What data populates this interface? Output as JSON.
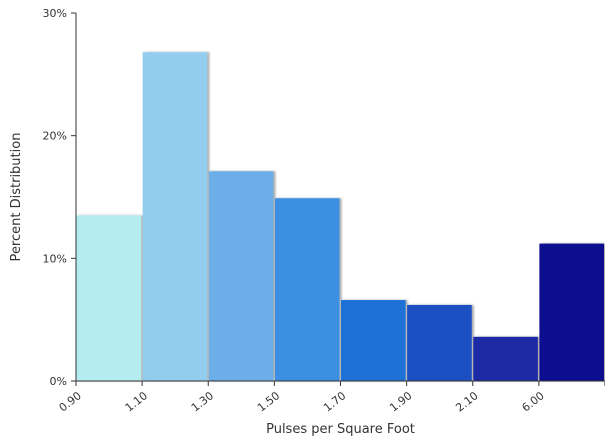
{
  "chart_data": {
    "type": "bar",
    "xlabel": "Pulses per Square Foot",
    "ylabel": "Percent Distribution",
    "categories": [
      "0.90",
      "1.10",
      "1.30",
      "1.50",
      "1.70",
      "1.90",
      "2.10",
      "6.00"
    ],
    "values": [
      13.5,
      26.8,
      17.1,
      14.9,
      6.6,
      6.2,
      3.6,
      11.2
    ],
    "colors": [
      "#b5ecf0",
      "#92cdee",
      "#6cafe8",
      "#3c8fe3",
      "#1f6fd6",
      "#1e4fc1",
      "#1b2ba6",
      "#0b1090"
    ],
    "ylim": [
      0,
      30
    ],
    "yticks": [
      0,
      10,
      20,
      30
    ],
    "ytick_labels": [
      "0%",
      "10%",
      "20%",
      "30%"
    ],
    "grid": false,
    "legend": false
  }
}
